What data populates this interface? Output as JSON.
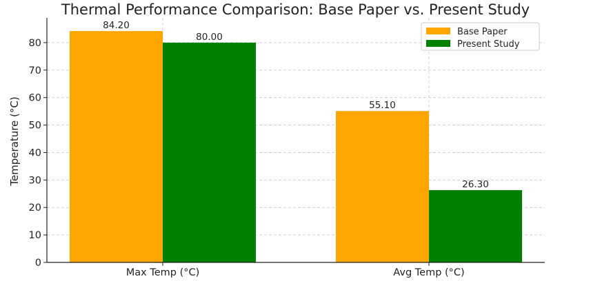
{
  "chart_data": {
    "type": "bar",
    "title": "Thermal Performance Comparison: Base Paper vs. Present Study",
    "xlabel": "",
    "ylabel": "Temperature (°C)",
    "categories": [
      "Max Temp (°C)",
      "Avg Temp (°C)"
    ],
    "series": [
      {
        "name": "Base Paper",
        "values": [
          84.2,
          55.1
        ],
        "labels": [
          "84.20",
          "55.10"
        ],
        "color": "#ffa500"
      },
      {
        "name": "Present Study",
        "values": [
          80.0,
          26.3
        ],
        "labels": [
          "80.00",
          "26.30"
        ],
        "color": "#008000"
      }
    ],
    "ylim": [
      0,
      89
    ],
    "yticks": [
      0,
      10,
      20,
      30,
      40,
      50,
      60,
      70,
      80
    ],
    "ytick_labels": [
      "0",
      "10",
      "20",
      "30",
      "40",
      "50",
      "60",
      "70",
      "80"
    ],
    "grid": true,
    "legend_position": "top-right"
  }
}
